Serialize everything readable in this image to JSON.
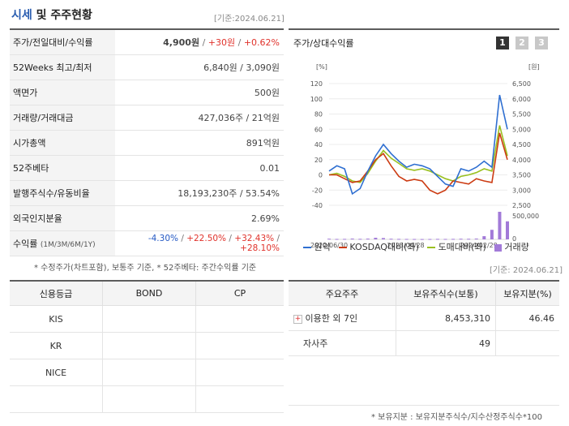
{
  "header": {
    "title_main": "시세",
    "title_rest": "및 주주현황",
    "date": "[기준:2024.06.21]"
  },
  "quote": {
    "rows": [
      {
        "label": "주가/전일대비/수익률",
        "price": "4,900원",
        "change": "+30원",
        "rate": "+0.62%"
      },
      {
        "label": "52Weeks 최고/최저",
        "value": "6,840원 / 3,090원"
      },
      {
        "label": "액면가",
        "value": "500원"
      },
      {
        "label": "거래량/거래대금",
        "value": "427,036주 / 21억원"
      },
      {
        "label": "시가총액",
        "value": "891억원"
      },
      {
        "label": "52주베타",
        "value": "0.01"
      },
      {
        "label": "발행주식수/유동비율",
        "value": "18,193,230주 / 53.54%"
      },
      {
        "label": "외국인지분율",
        "value": "2.69%"
      },
      {
        "label": "수익률",
        "sub": "(1M/3M/6M/1Y)",
        "r1": "-4.30%",
        "r2": "+22.50%",
        "r3": "+32.43%",
        "r4": "+28.10%"
      }
    ],
    "note": "* 수정주가(차트포함), 보통주 기준, * 52주베타: 주간수익률 기준"
  },
  "chart_panel": {
    "title": "주가/상대수익률",
    "tabs": [
      "1",
      "2",
      "3"
    ],
    "active_tab": "1",
    "date_note": "[기준: 2024.06.21]",
    "left_unit": "[%]",
    "right_unit": "[원]",
    "legend": [
      {
        "label": "원익",
        "color": "#2f6fd1"
      },
      {
        "label": "KOSDAQ대비(좌)",
        "color": "#cc3b12"
      },
      {
        "label": "도매대비(좌)",
        "color": "#9ac021"
      },
      {
        "label": "거래량",
        "color": "#a27ad8"
      }
    ]
  },
  "chart_data": {
    "type": "line",
    "x_ticks": [
      "2022/06/30",
      "2023/04/28",
      "2024/02/29"
    ],
    "left_axis": {
      "ticks": [
        "120",
        "100",
        "80",
        "60",
        "40",
        "20",
        "0",
        "-20",
        "-40"
      ],
      "ylim": [
        -40,
        120
      ]
    },
    "right_axis": {
      "ticks": [
        "6,500",
        "6,000",
        "5,500",
        "5,000",
        "4,500",
        "4,000",
        "3,500",
        "3,000",
        "2,500"
      ],
      "ylim": [
        2500,
        6500
      ]
    },
    "volume_axis": {
      "ticks": [
        "500,000",
        "0"
      ]
    },
    "series": [
      {
        "name": "원익",
        "values": [
          5,
          12,
          8,
          -25,
          -18,
          5,
          25,
          40,
          28,
          18,
          10,
          14,
          12,
          8,
          -2,
          -12,
          -15,
          8,
          5,
          10,
          18,
          10,
          105,
          60
        ]
      },
      {
        "name": "KOSDAQ대비(좌)",
        "values": [
          0,
          0,
          -5,
          -10,
          -8,
          5,
          20,
          28,
          12,
          -2,
          -8,
          -6,
          -8,
          -20,
          -25,
          -20,
          -8,
          -10,
          -12,
          -5,
          -8,
          -10,
          55,
          20
        ]
      },
      {
        "name": "도매대비(좌)",
        "values": [
          0,
          2,
          -2,
          -8,
          -10,
          2,
          18,
          32,
          22,
          15,
          8,
          6,
          8,
          5,
          0,
          -5,
          -8,
          -2,
          0,
          3,
          8,
          5,
          65,
          25
        ]
      }
    ],
    "volume": [
      12000,
      8000,
      9000,
      15000,
      10000,
      14000,
      30000,
      25000,
      12000,
      9000,
      8000,
      7000,
      6000,
      7000,
      9000,
      8000,
      9000,
      12000,
      11000,
      15000,
      60000,
      180000,
      520000,
      340000
    ]
  },
  "credit": {
    "headers": [
      "신용등급",
      "BOND",
      "CP"
    ],
    "rows": [
      [
        "KIS",
        "",
        ""
      ],
      [
        "KR",
        "",
        ""
      ],
      [
        "NICE",
        "",
        ""
      ],
      [
        "",
        "",
        ""
      ]
    ]
  },
  "holders": {
    "headers": [
      "주요주주",
      "보유주식수(보통)",
      "보유지분(%)"
    ],
    "rows": [
      {
        "name": "이용한 외 7인",
        "shares": "8,453,310",
        "pct": "46.46",
        "expand": true
      },
      {
        "name": "자사주",
        "shares": "49",
        "pct": ""
      }
    ],
    "footnote": "* 보유지분 : 보유지분주식수/지수산정주식수*100"
  }
}
